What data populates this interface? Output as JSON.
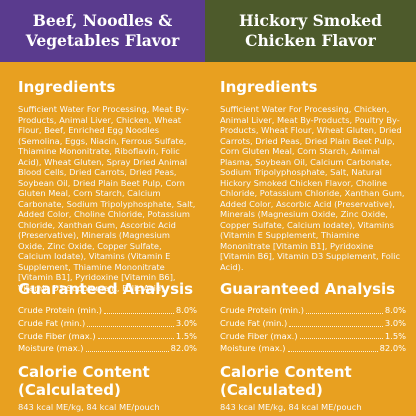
{
  "left": {
    "header": [
      "Beef, Noodles &",
      "Vegetables Flavor"
    ],
    "ingredients_title": "Ingredients",
    "ingredients": "Sufficient Water For Processing, Meat By-Products, Animal Liver, Chicken, Wheat Flour, Beef, Enriched Egg Noodles (Semolina, Eggs, Niacin, Ferrous Sulfate, Thiamine Mononitrate, Riboflavin, Folic Acid), Wheat Gluten, Spray Dried Animal Blood Cells, Dried Carrots, Dried Peas, Soybean Oil, Dried Plain Beet Pulp, Corn Gluten Meal, Corn Starch, Calcium Carbonate, Sodium Tripolyphosphate, Salt, Added Color, Choline Chloride, Potassium Chloride, Xanthan Gum, Ascorbic Acid (Preservative), Minerals (Magnesium Oxide, Zinc Oxide, Copper Sulfate, Calcium Iodate), Vitamins (Vitamin E Supplement, Thiamine Mononitrate [Vitamin B1], Pyridoxine [Vitamin B6], Vitamin D3 Supplement, Folic Acid).",
    "analysis_title": "Guaranteed Analysis",
    "analysis": [
      {
        "label": "Crude Protein (min.)",
        "value": "8.0%"
      },
      {
        "label": "Crude Fat (min.)",
        "value": "3.0%"
      },
      {
        "label": "Crude Fiber (max.)",
        "value": "1.5%"
      },
      {
        "label": "Moisture (max.)",
        "value": "82.0%"
      }
    ],
    "calorie_title": [
      "Calorie Content",
      "(Calculated)"
    ],
    "calorie_text": "843 kcal ME/kg, 84 kcal ME/pouch"
  },
  "right": {
    "header": [
      "Hickory Smoked",
      "Chicken Flavor"
    ],
    "ingredients_title": "Ingredients",
    "ingredients": "Sufficient Water For Processing, Chicken, Animal Liver, Meat By-Products, Poultry By-Products, Wheat Flour, Wheat Gluten, Dried Carrots, Dried Peas, Dried Plain Beet Pulp, Corn Gluten Meal, Corn Starch, Animal Plasma, Soybean Oil, Calcium Carbonate, Sodium Tripolyphosphate, Salt, Natural Hickory Smoked Chicken Flavor, Choline Chloride, Potassium Chloride, Xanthan Gum, Added Color, Ascorbic Acid (Preservative), Minerals (Magnesium Oxide, Zinc Oxide, Copper Sulfate, Calcium Iodate), Vitamins (Vitamin E Supplement, Thiamine Mononitrate [Vitamin B1], Pyridoxine [Vitamin B6], Vitamin D3 Supplement, Folic Acid).",
    "analysis_title": "Guaranteed Analysis",
    "analysis": [
      {
        "label": "Crude Protein (min.)",
        "value": "8.0%"
      },
      {
        "label": "Crude Fat (min.)",
        "value": "3.0%"
      },
      {
        "label": "Crude Fiber (max.)",
        "value": "1.5%"
      },
      {
        "label": "Moisture (max.)",
        "value": "82.0%"
      }
    ],
    "calorie_title": [
      "Calorie Content",
      "(Calculated)"
    ],
    "calorie_text": "843 kcal ME/kg, 84 kcal ME/pouch"
  },
  "colors": {
    "background": "#e8a020",
    "left_header": "#5a3b8e",
    "right_header": "#4d5a2b",
    "text": "#ffffff"
  }
}
